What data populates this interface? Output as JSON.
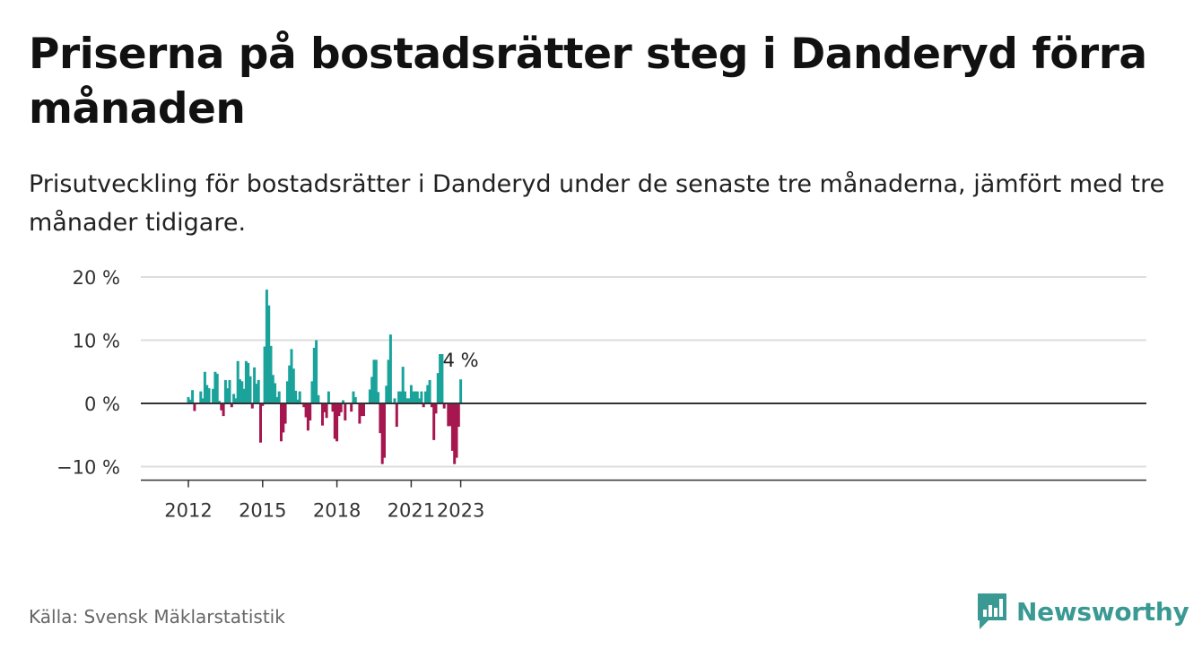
{
  "title": "Priserna på bostadsrätter steg i Danderyd förra månaden",
  "subtitle": "Prisutveckling för bostadsrätter i Danderyd under de senaste tre månaderna, jämfört med tre månader tidigare.",
  "source": "Källa: Svensk Mäklarstatistik",
  "brand": "Newsworthy",
  "colors": {
    "positive": "#1aa39b",
    "negative": "#a6174f",
    "grid": "#dddddd",
    "baseline": "#333333",
    "brand": "#3a9a93"
  },
  "chart_data": {
    "type": "bar",
    "start": "2012-01",
    "ylim": [
      -12,
      20
    ],
    "yticks": [
      {
        "value": 20,
        "label": "20 %"
      },
      {
        "value": 10,
        "label": "10 %"
      },
      {
        "value": 0,
        "label": "0 %"
      },
      {
        "value": -10,
        "label": "−10 %"
      }
    ],
    "xticks": [
      {
        "label": "2012",
        "index": 0
      },
      {
        "label": "2015",
        "index": 36
      },
      {
        "label": "2018",
        "index": 72
      },
      {
        "label": "2021",
        "index": 108
      },
      {
        "label": "2023",
        "index": 132
      }
    ],
    "values": [
      1.0,
      0.6,
      2.1,
      -1.2,
      null,
      null,
      1.9,
      0.8,
      5.0,
      2.9,
      2.4,
      null,
      2.3,
      5.0,
      4.7,
      0.4,
      -1.1,
      -2.0,
      3.7,
      2.4,
      3.7,
      -0.6,
      1.5,
      0.8,
      6.7,
      3.8,
      3.5,
      2.3,
      6.7,
      6.4,
      4.3,
      -0.8,
      5.7,
      3.1,
      3.7,
      -6.2,
      -0.4,
      9.0,
      18.0,
      15.5,
      9.1,
      4.5,
      3.2,
      1.0,
      1.9,
      -6.0,
      -4.6,
      -3.2,
      3.5,
      6.0,
      8.6,
      5.5,
      2.0,
      0.6,
      1.9,
      null,
      -0.6,
      -2.2,
      -4.3,
      -2.7,
      3.5,
      8.8,
      10.0,
      1.3,
      null,
      -3.5,
      -1.4,
      -2.3,
      1.9,
      null,
      -1.3,
      -5.6,
      -6.0,
      -2.0,
      -1.4,
      0.5,
      -2.7,
      null,
      null,
      -1.3,
      1.9,
      1.0,
      null,
      -3.2,
      -2.0,
      -2.0,
      null,
      null,
      2.2,
      4.2,
      6.9,
      6.9,
      1.8,
      -4.7,
      -9.6,
      -8.6,
      2.8,
      6.9,
      10.9,
      null,
      0.8,
      -3.7,
      1.9,
      1.9,
      5.8,
      1.9,
      0.8,
      0.8,
      2.9,
      1.9,
      1.9,
      1.9,
      0.8,
      1.9,
      -0.6,
      1.9,
      2.9,
      3.7,
      -0.6,
      -5.8,
      -1.6,
      4.8,
      7.8,
      7.8,
      -0.8,
      null,
      -3.6,
      -3.6,
      -7.5,
      -9.6,
      -8.6,
      -3.7,
      3.8
    ],
    "annotation": {
      "index": 132,
      "label": "4 %"
    }
  }
}
